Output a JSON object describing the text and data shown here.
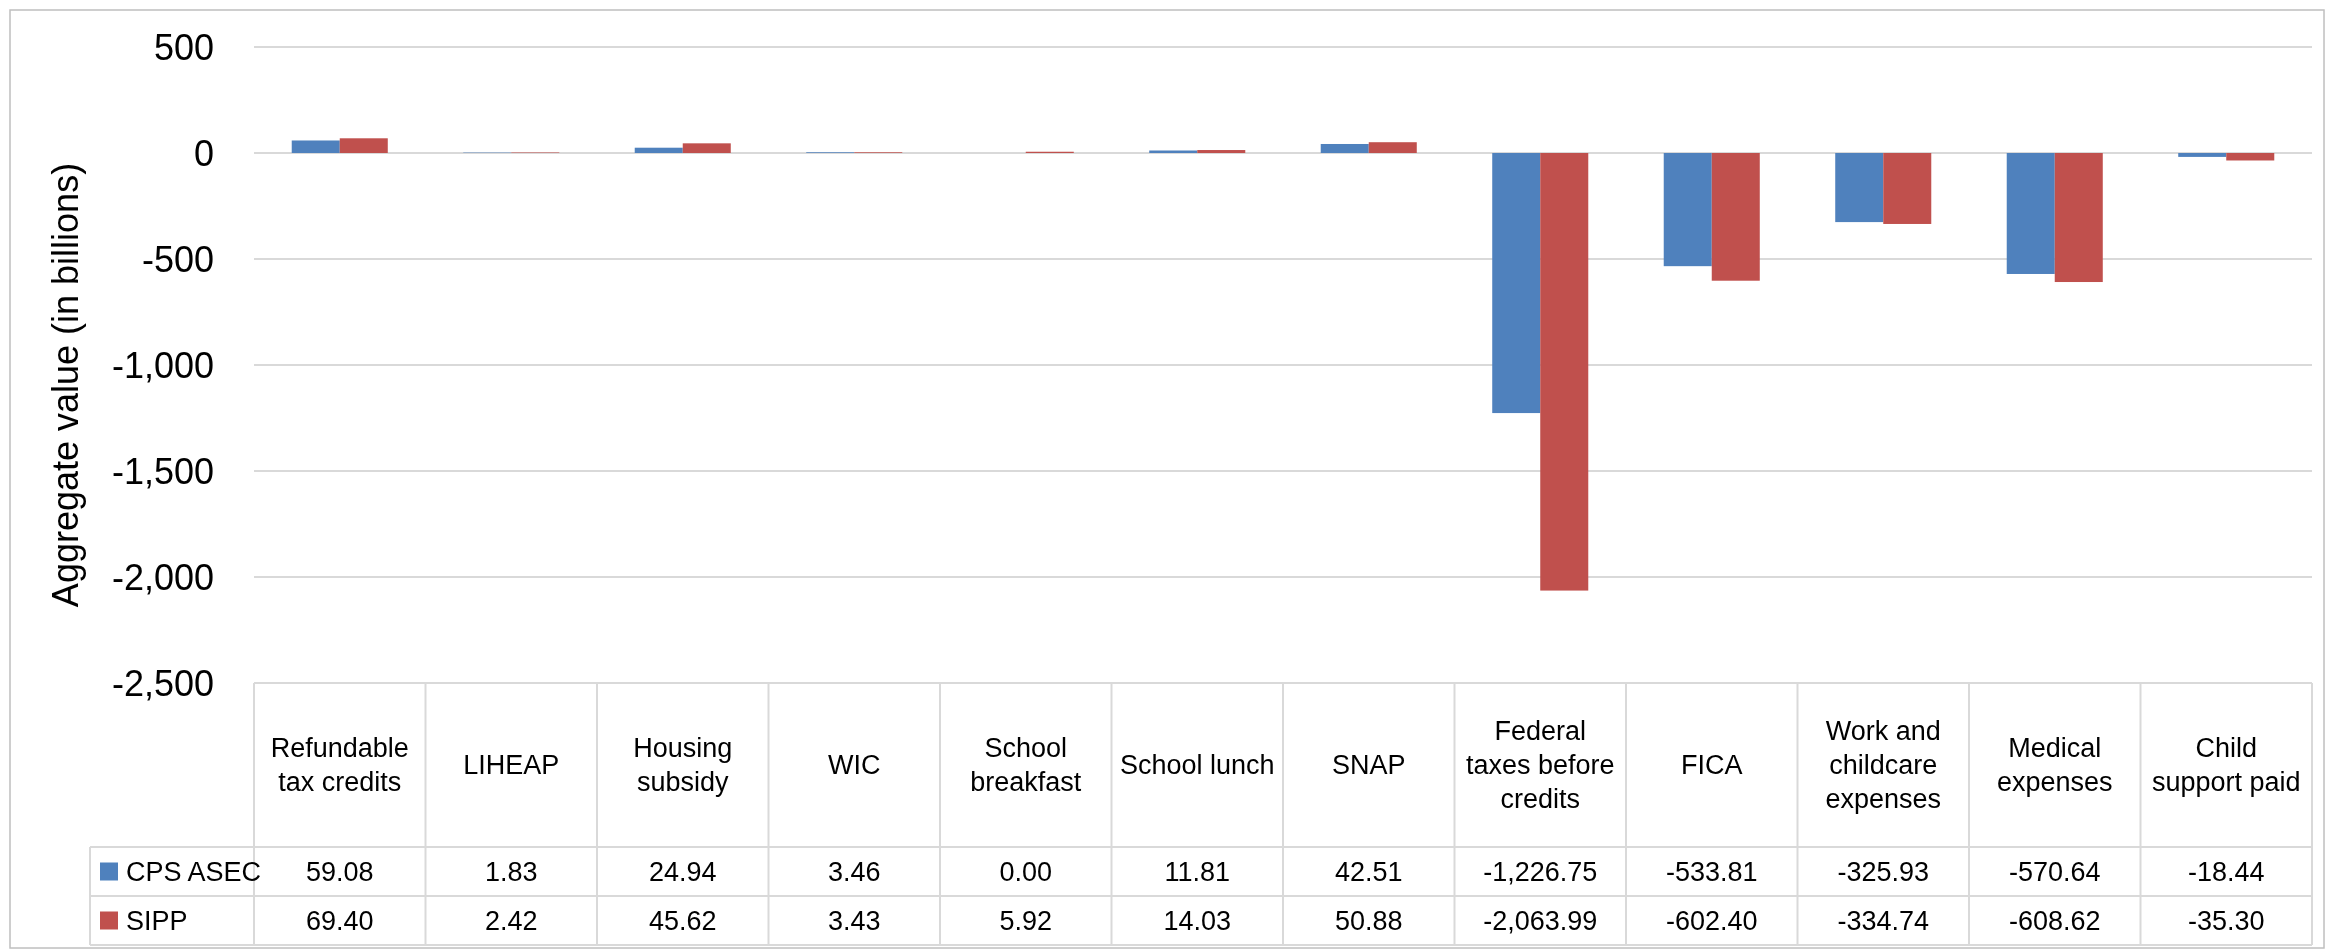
{
  "chart_data": {
    "type": "bar",
    "ylabel": "Aggregate value (in billions)",
    "categories": [
      "Refundable tax credits",
      "LIHEAP",
      "Housing subsidy",
      "WIC",
      "School breakfast",
      "School lunch",
      "SNAP",
      "Federal taxes before credits",
      "FICA",
      "Work and childcare expenses",
      "Medical expenses",
      "Child support paid"
    ],
    "series": [
      {
        "name": "CPS ASEC",
        "color": "#4f81bd",
        "values": [
          59.08,
          1.83,
          24.94,
          3.46,
          0.0,
          11.81,
          42.51,
          -1226.75,
          -533.81,
          -325.93,
          -570.64,
          -18.44
        ],
        "value_labels": [
          "59.08",
          "1.83",
          "24.94",
          "3.46",
          "0.00",
          "11.81",
          "42.51",
          "-1,226.75",
          "-533.81",
          "-325.93",
          "-570.64",
          "-18.44"
        ]
      },
      {
        "name": "SIPP",
        "color": "#c0504d",
        "values": [
          69.4,
          2.42,
          45.62,
          3.43,
          5.92,
          14.03,
          50.88,
          -2063.99,
          -602.4,
          -334.74,
          -608.62,
          -35.3
        ],
        "value_labels": [
          "69.40",
          "2.42",
          "45.62",
          "3.43",
          "5.92",
          "14.03",
          "50.88",
          "-2,063.99",
          "-602.40",
          "-334.74",
          "-608.62",
          "-35.30"
        ]
      }
    ],
    "ylim": [
      -2500,
      500
    ],
    "yticks": [
      {
        "value": -2500,
        "label": "-2,500"
      },
      {
        "value": -2000,
        "label": "-2,000"
      },
      {
        "value": -1500,
        "label": "-1,500"
      },
      {
        "value": -1000,
        "label": "-1,000"
      },
      {
        "value": -500,
        "label": "-500"
      },
      0,
      500
    ],
    "grid": "y",
    "legend": "bottom"
  }
}
